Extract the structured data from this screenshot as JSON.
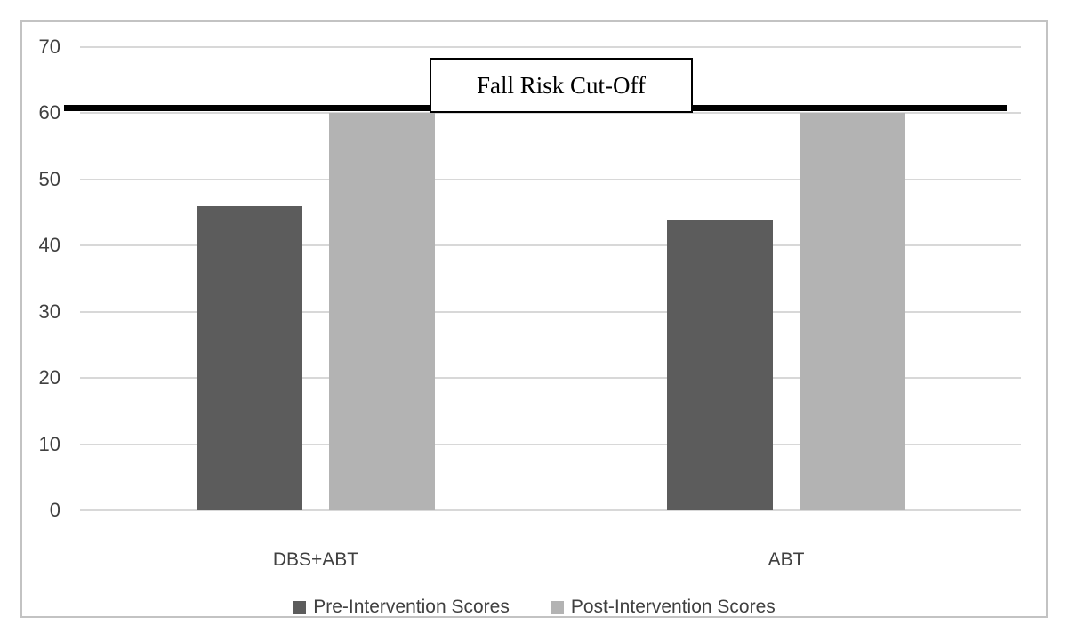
{
  "chart_data": {
    "type": "bar",
    "title": "Fall Risk Cut-Off",
    "categories": [
      "DBS+ABT",
      "ABT"
    ],
    "series": [
      {
        "name": "Pre-Intervention Scores",
        "color": "#5c5c5c",
        "values": [
          46,
          44
        ]
      },
      {
        "name": "Post-Intervention Scores",
        "color": "#b3b3b3",
        "values": [
          60,
          60
        ]
      }
    ],
    "y_ticks": [
      0,
      10,
      20,
      30,
      40,
      50,
      60,
      70
    ],
    "ylim": [
      0,
      70
    ],
    "xlabel": "",
    "ylabel": "",
    "grid": true,
    "legend_position": "bottom",
    "reference_line": {
      "label": "Fall Risk Cut-Off",
      "value": 60,
      "color": "#000000"
    },
    "colors": {
      "gridline": "#d8d8d8",
      "axis_text": "#404040",
      "frame_border": "#c3c3c3",
      "reference_line": "#000000"
    }
  }
}
